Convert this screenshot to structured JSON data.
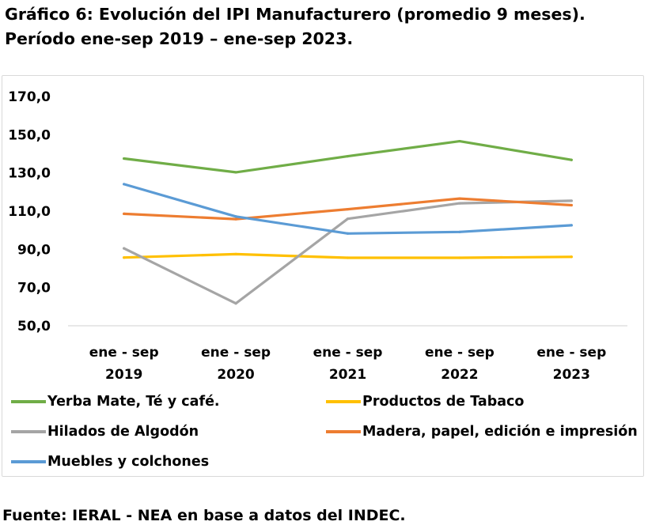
{
  "title_line1": "Gráfico 6: Evolución del IPI Manufacturero (promedio 9 meses).",
  "title_line2": "Período ene-sep 2019 – ene-sep 2023.",
  "source": "Fuente: IERAL - NEA en base a datos del INDEC.",
  "chart_data": {
    "type": "line",
    "title": "Gráfico 6: Evolución del IPI Manufacturero (promedio 9 meses). Período ene-sep 2019 – ene-sep 2023.",
    "categories": [
      [
        "ene - sep",
        "2019"
      ],
      [
        "ene - sep",
        "2020"
      ],
      [
        "ene - sep",
        "2021"
      ],
      [
        "ene - sep",
        "2022"
      ],
      [
        "ene - sep",
        "2023"
      ]
    ],
    "y_ticks": [
      "170,0",
      "150,0",
      "130,0",
      "110,0",
      "90,0",
      "70,0",
      "50,0"
    ],
    "ylim": [
      50,
      170
    ],
    "grid": false,
    "legend_position": "bottom",
    "series": [
      {
        "name": "Yerba Mate, Té y café.",
        "color": "#70ad47",
        "values": [
          137.5,
          130.3,
          138.7,
          146.6,
          136.8
        ]
      },
      {
        "name": "Productos de Tabaco",
        "color": "#ffc000",
        "values": [
          85.7,
          87.5,
          85.6,
          85.6,
          86.1
        ]
      },
      {
        "name": "Hilados de Algodón",
        "color": "#a5a5a5",
        "values": [
          90.5,
          61.7,
          106.0,
          114.1,
          115.4
        ]
      },
      {
        "name": "Madera, papel, edición e impresión",
        "color": "#ed7d31",
        "values": [
          108.6,
          105.8,
          111.0,
          116.6,
          113.1
        ]
      },
      {
        "name": "Muebles y colchones",
        "color": "#5b9bd5",
        "values": [
          124.1,
          107.2,
          98.3,
          99.1,
          102.6
        ]
      }
    ]
  }
}
